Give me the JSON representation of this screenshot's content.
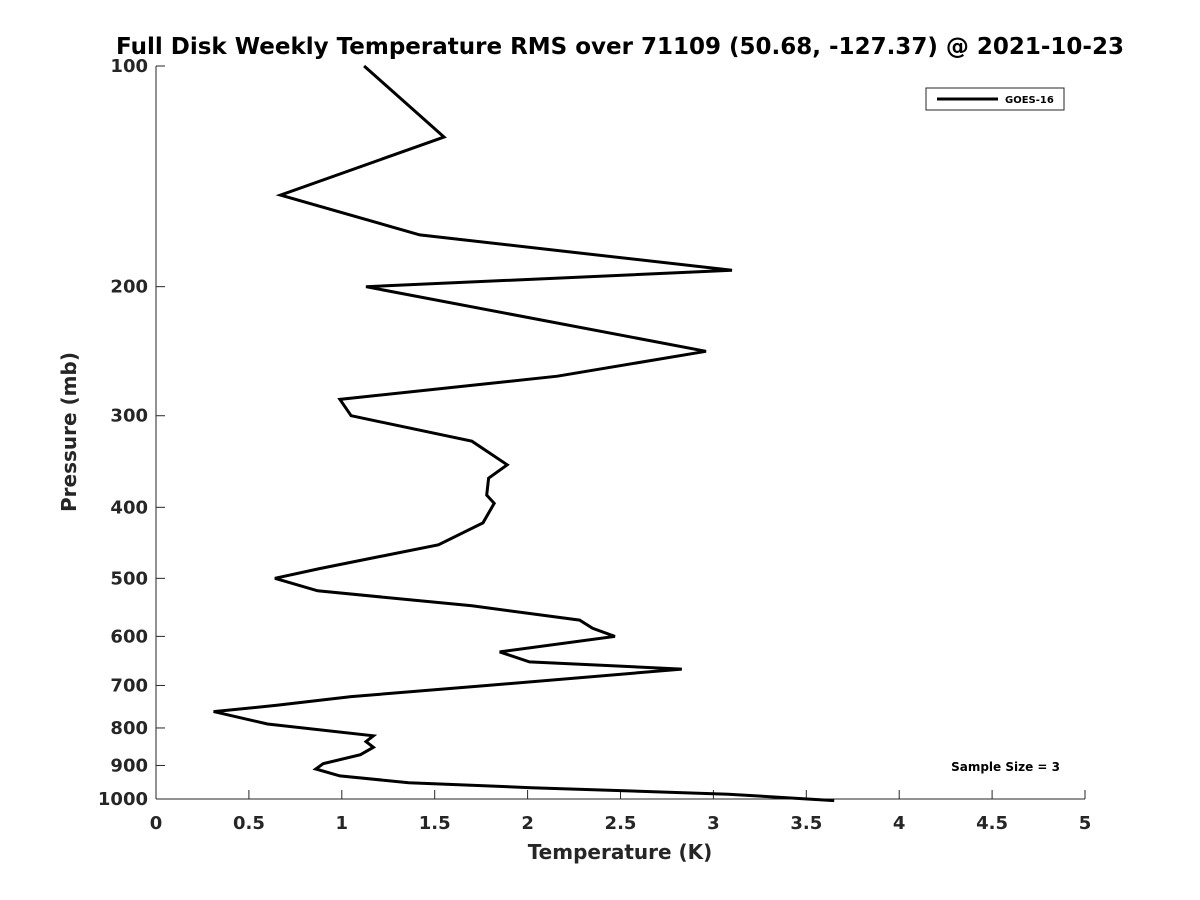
{
  "chart_data": {
    "type": "line",
    "title": "Full Disk Weekly Temperature RMS over 71109 (50.68, -127.37) @ 2021-10-23",
    "xlabel": "Temperature (K)",
    "ylabel": "Pressure (mb)",
    "xlim": [
      0,
      5
    ],
    "ylim": [
      100,
      1000
    ],
    "yscale": "log",
    "y_reversed": true,
    "x_ticks": [
      "0",
      "0.5",
      "1",
      "1.5",
      "2",
      "2.5",
      "3",
      "3.5",
      "4",
      "4.5",
      "5"
    ],
    "y_ticks": [
      "100",
      "200",
      "300",
      "400",
      "500",
      "600",
      "700",
      "800",
      "900",
      "1000"
    ],
    "grid": false,
    "legend_position": "top-right",
    "annotation": "Sample Size = 3",
    "series": [
      {
        "name": "GOES-16",
        "color": "#000000",
        "x": [
          1.12,
          1.55,
          0.67,
          1.42,
          3.1,
          1.13,
          2.96,
          2.16,
          0.99,
          1.05,
          1.7,
          1.89,
          1.79,
          1.78,
          1.82,
          1.76,
          1.52,
          0.88,
          0.64,
          0.87,
          1.7,
          2.28,
          2.35,
          2.47,
          1.85,
          2.01,
          2.83,
          1.78,
          1.05,
          0.65,
          0.31,
          0.6,
          1.17,
          1.13,
          1.17,
          1.1,
          0.9,
          0.86,
          0.99,
          1.36,
          2.02,
          3.08,
          3.65
        ],
        "y": [
          100,
          125,
          150,
          170,
          190,
          200,
          245,
          265,
          285,
          300,
          325,
          350,
          365,
          385,
          395,
          420,
          450,
          485,
          500,
          520,
          545,
          570,
          585,
          600,
          630,
          650,
          665,
          700,
          725,
          745,
          760,
          790,
          820,
          835,
          850,
          870,
          895,
          910,
          930,
          950,
          965,
          985,
          1005
        ]
      }
    ]
  }
}
